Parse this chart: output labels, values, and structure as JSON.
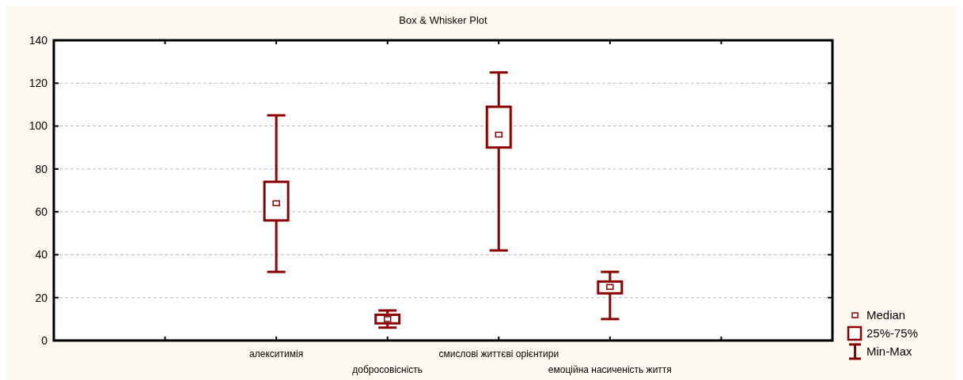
{
  "chart_data": {
    "type": "box",
    "title": "Box & Whisker Plot",
    "categories": [
      null,
      "алекситимія",
      "добросовісність",
      "смислові життєві орієнтири",
      "емоційна насиченість життя",
      null
    ],
    "boxes": [
      null,
      {
        "low": 32,
        "q1": 56,
        "median": 64,
        "q3": 74,
        "high": 105
      },
      {
        "low": 6,
        "q1": 8,
        "median": 10,
        "q3": 12,
        "high": 14
      },
      {
        "low": 42,
        "q1": 90,
        "median": 96,
        "q3": 109,
        "high": 125
      },
      {
        "low": 10,
        "q1": 22,
        "median": 25,
        "q3": 27.5,
        "high": 32
      },
      null
    ],
    "color": "#8b0000",
    "ylim": [
      0,
      140
    ],
    "yticks": [
      0,
      20,
      40,
      60,
      80,
      100,
      120,
      140
    ],
    "grid": "y",
    "annotations": [
      "Median",
      "25%-75%",
      "Min-Max"
    ]
  }
}
